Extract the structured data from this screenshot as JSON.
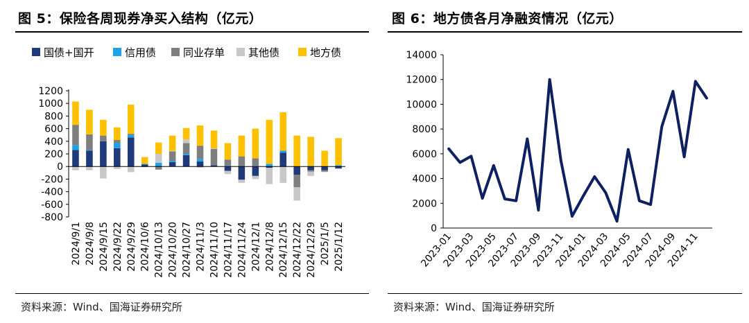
{
  "left": {
    "title": "图 5：保险各周现券净买入结构（亿元）",
    "source": "资料来源：Wind、国海证券研究所"
  },
  "right": {
    "title": "图 6：地方债各月净融资情况（亿元）",
    "source": "资料来源：Wind、国海证券研究所"
  },
  "chart_data": [
    {
      "type": "bar",
      "stacked": true,
      "title": "保险各周现券净买入结构（亿元）",
      "ylim": [
        -800,
        1200
      ],
      "yticks": [
        -800,
        -600,
        -400,
        -200,
        0,
        200,
        400,
        600,
        800,
        1000,
        1200
      ],
      "legend_position": "top",
      "grid": false,
      "colors": [
        "#1f3a7a",
        "#1aa3e8",
        "#7f7f7f",
        "#c8c8c8",
        "#ffc000"
      ],
      "categories": [
        "2024/9/1",
        "2024/9/8",
        "2024/9/15",
        "2024/9/22",
        "2024/9/29",
        "2024/10/6",
        "2024/10/13",
        "2024/10/20",
        "2024/10/27",
        "2024/11/3",
        "2024/11/10",
        "2024/11/17",
        "2024/11/24",
        "2024/12/1",
        "2024/12/8",
        "2024/12/15",
        "2024/12/22",
        "2024/12/29",
        "2025/1/5",
        "2025/1/12"
      ],
      "labeled_categories": [
        "2024/9/1",
        "2024/9/8",
        "2024/9/15",
        "2024/9/22",
        "2024/9/29",
        "2024/10/6",
        "2024/10/13",
        "2024/10/20",
        "2024/10/27",
        "2024/11/3",
        "2024/11/10",
        "2024/11/17",
        "2024/11/24",
        "2024/12/1",
        "2024/12/8",
        "2024/12/15",
        "2024/12/22",
        "2024/12/29",
        "2025/1/5",
        "2025/1/12"
      ],
      "series": [
        {
          "name": "国债+国开",
          "values": [
            260,
            250,
            400,
            290,
            460,
            30,
            10,
            70,
            180,
            80,
            20,
            -70,
            -210,
            -150,
            -20,
            220,
            -130,
            -60,
            -60,
            -30
          ]
        },
        {
          "name": "信用债",
          "values": [
            80,
            10,
            0,
            80,
            40,
            10,
            50,
            20,
            20,
            40,
            0,
            10,
            0,
            10,
            40,
            30,
            0,
            10,
            0,
            20
          ]
        },
        {
          "name": "同业存单",
          "values": [
            320,
            250,
            90,
            50,
            20,
            0,
            -50,
            150,
            170,
            210,
            260,
            100,
            160,
            120,
            0,
            0,
            -200,
            -20,
            -20,
            0
          ]
        },
        {
          "name": "其他债",
          "values": [
            -60,
            -60,
            -190,
            -40,
            -90,
            -10,
            140,
            10,
            60,
            -20,
            10,
            -50,
            -50,
            -50,
            -260,
            -260,
            -210,
            -70,
            -10,
            -10
          ]
        },
        {
          "name": "地方债",
          "values": [
            370,
            390,
            250,
            200,
            460,
            110,
            180,
            240,
            180,
            320,
            280,
            260,
            330,
            470,
            700,
            610,
            490,
            460,
            250,
            430
          ]
        }
      ]
    },
    {
      "type": "line",
      "title": "地方债各月净融资情况（亿元）",
      "ylim": [
        0,
        14000
      ],
      "yticks": [
        0,
        2000,
        4000,
        6000,
        8000,
        10000,
        12000,
        14000
      ],
      "grid": false,
      "color": "#0e2060",
      "x": [
        "2023-01",
        "2023-02",
        "2023-03",
        "2023-04",
        "2023-05",
        "2023-06",
        "2023-07",
        "2023-08",
        "2023-09",
        "2023-10",
        "2023-11",
        "2023-12",
        "2024-01",
        "2024-02",
        "2024-03",
        "2024-04",
        "2024-05",
        "2024-06",
        "2024-07",
        "2024-08",
        "2024-09",
        "2024-10",
        "2024-11",
        "2024-12"
      ],
      "labeled_x": [
        "2023-01",
        "2023-03",
        "2023-05",
        "2023-07",
        "2023-09",
        "2023-11",
        "2024-01",
        "2024-03",
        "2024-05",
        "2024-07",
        "2024-09",
        "2024-11"
      ],
      "values": [
        6400,
        5300,
        5800,
        2400,
        5050,
        2350,
        2200,
        7200,
        1450,
        12000,
        5450,
        950,
        2600,
        4150,
        2850,
        550,
        6350,
        2200,
        1900,
        8200,
        11050,
        5750,
        11850,
        10500
      ]
    }
  ]
}
